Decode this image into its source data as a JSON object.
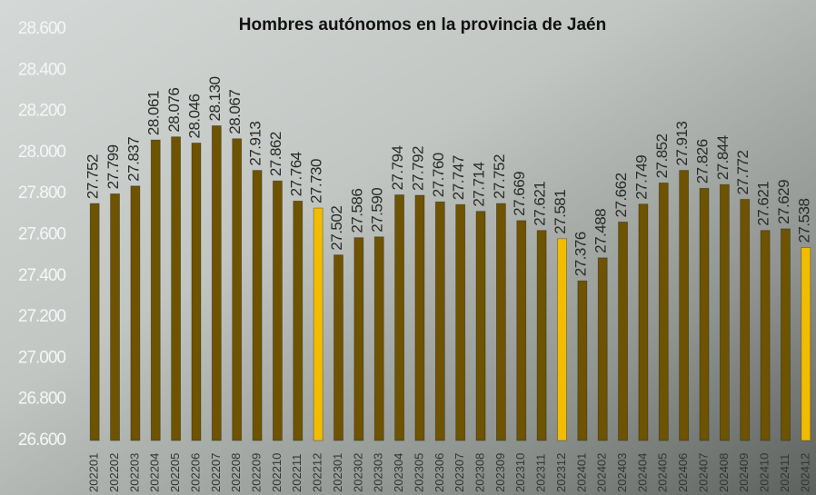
{
  "chart_data": {
    "type": "bar",
    "title": "Hombres autónomos en la provincia de Jaén",
    "categories": [
      "202201",
      "202202",
      "202203",
      "202204",
      "202205",
      "202206",
      "202207",
      "202208",
      "202209",
      "202210",
      "202211",
      "202212",
      "202301",
      "202302",
      "202303",
      "202304",
      "202305",
      "202306",
      "202307",
      "202308",
      "202309",
      "202310",
      "202311",
      "202312",
      "202401",
      "202402",
      "202403",
      "202404",
      "202405",
      "202406",
      "202407",
      "202408",
      "202409",
      "202410",
      "202411",
      "202412"
    ],
    "values": [
      27752,
      27799,
      27837,
      28061,
      28076,
      28046,
      28130,
      28067,
      27913,
      27862,
      27764,
      27730,
      27502,
      27586,
      27590,
      27794,
      27792,
      27760,
      27747,
      27714,
      27752,
      27669,
      27621,
      27581,
      27376,
      27488,
      27662,
      27749,
      27852,
      27913,
      27826,
      27844,
      27772,
      27621,
      27629,
      27538
    ],
    "value_labels": [
      "27.752",
      "27.799",
      "27.837",
      "28.061",
      "28.076",
      "28.046",
      "28.130",
      "28.067",
      "27.913",
      "27.862",
      "27.764",
      "27.730",
      "27.502",
      "27.586",
      "27.590",
      "27.794",
      "27.792",
      "27.760",
      "27.747",
      "27.714",
      "27.752",
      "27.669",
      "27.621",
      "27.581",
      "27.376",
      "27.488",
      "27.662",
      "27.749",
      "27.852",
      "27.913",
      "27.826",
      "27.844",
      "27.772",
      "27.621",
      "27.629",
      "27.538"
    ],
    "colors": [
      "#6e5300",
      "#6e5300",
      "#6e5300",
      "#6e5300",
      "#6e5300",
      "#6e5300",
      "#6e5300",
      "#6e5300",
      "#6e5300",
      "#6e5300",
      "#6e5300",
      "#f2bc00",
      "#6e5300",
      "#6e5300",
      "#6e5300",
      "#6e5300",
      "#6e5300",
      "#6e5300",
      "#6e5300",
      "#6e5300",
      "#6e5300",
      "#6e5300",
      "#6e5300",
      "#f2bc00",
      "#6e5300",
      "#6e5300",
      "#6e5300",
      "#6e5300",
      "#6e5300",
      "#6e5300",
      "#6e5300",
      "#6e5300",
      "#6e5300",
      "#6e5300",
      "#6e5300",
      "#f2bc00"
    ],
    "ylim": [
      26600,
      28600
    ],
    "yticks": [
      {
        "value": 26600,
        "label": "26.600"
      },
      {
        "value": 26800,
        "label": "26.800"
      },
      {
        "value": 27000,
        "label": "27.000"
      },
      {
        "value": 27200,
        "label": "27.200"
      },
      {
        "value": 27400,
        "label": "27.400"
      },
      {
        "value": 27600,
        "label": "27.600"
      },
      {
        "value": 27800,
        "label": "27.800"
      },
      {
        "value": 28000,
        "label": "28.000"
      },
      {
        "value": 28200,
        "label": "28.200"
      },
      {
        "value": 28400,
        "label": "28.400"
      },
      {
        "value": 28600,
        "label": "28.600"
      }
    ],
    "grid": false
  }
}
